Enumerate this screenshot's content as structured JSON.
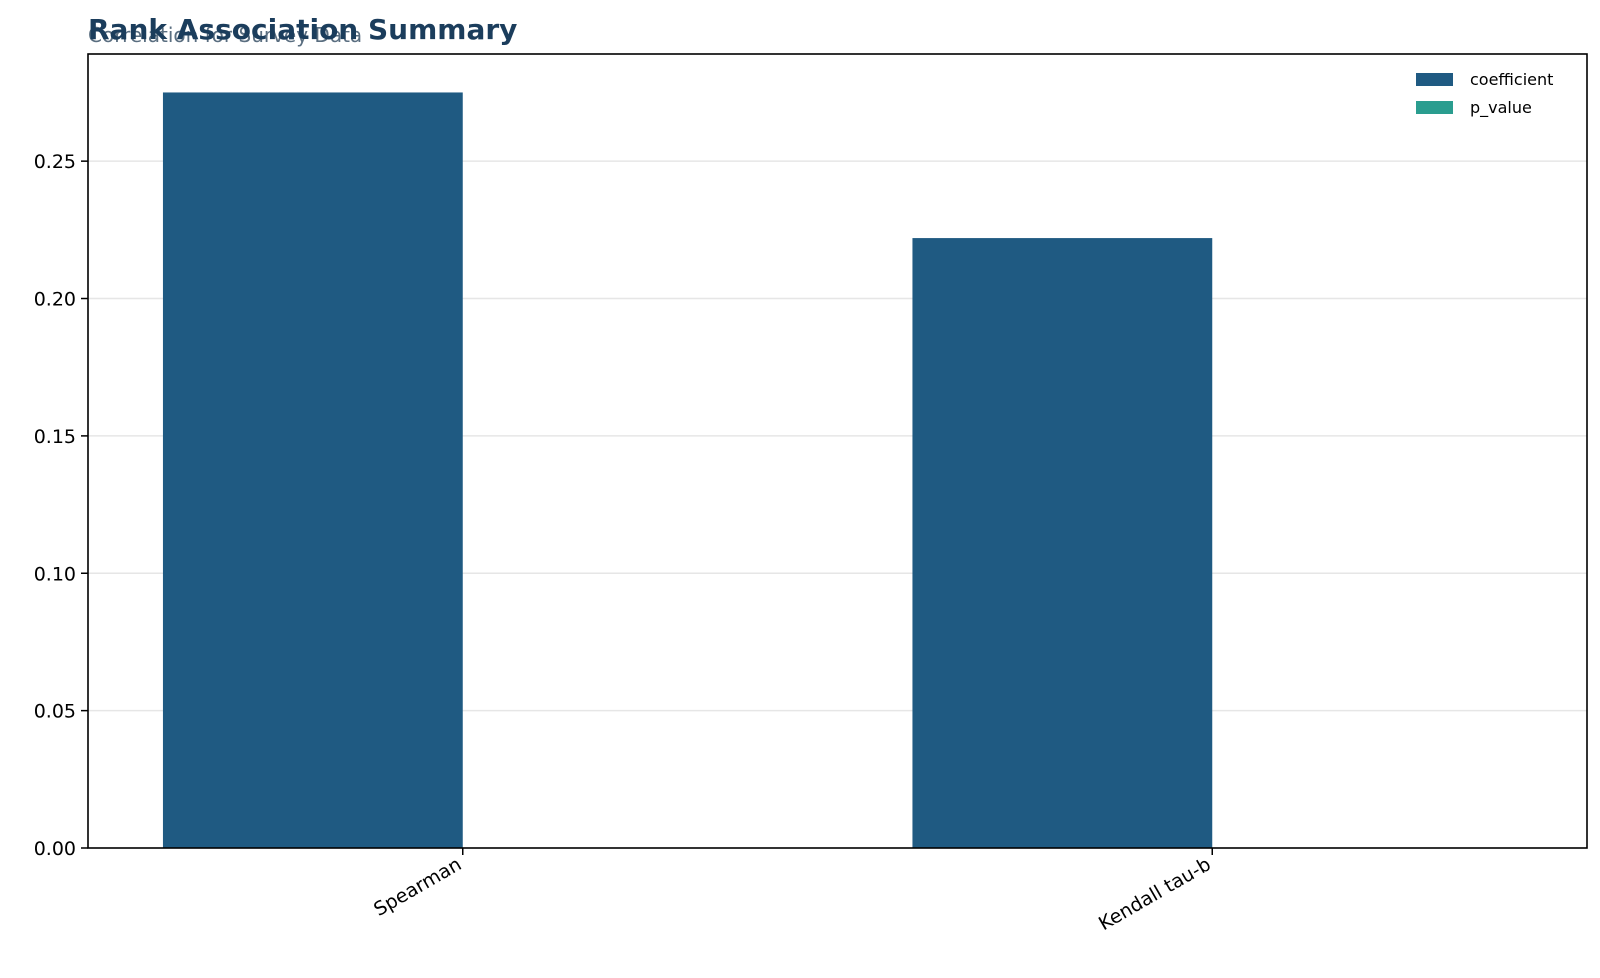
{
  "chart_data": {
    "type": "bar",
    "title": "Rank Association Summary",
    "subtitle": "Correlation for Survey Data",
    "categories": [
      "Spearman",
      "Kendall tau-b"
    ],
    "series": [
      {
        "name": "coefficient",
        "values": [
          0.275,
          0.222
        ],
        "color": "#1f5a82"
      },
      {
        "name": "p_value",
        "values": [
          0.0,
          0.0
        ],
        "color": "#2a9d8f"
      }
    ],
    "ylim": [
      0,
      0.289
    ],
    "yticks": [
      "0.00",
      "0.05",
      "0.10",
      "0.15",
      "0.20",
      "0.25"
    ],
    "ytick_values": [
      0,
      0.05,
      0.1,
      0.15,
      0.2,
      0.25
    ],
    "grid": "horizontal",
    "legend_position": "top-right",
    "title_color": "#1b3d5c",
    "subtitle_color": "#5a6e80"
  }
}
